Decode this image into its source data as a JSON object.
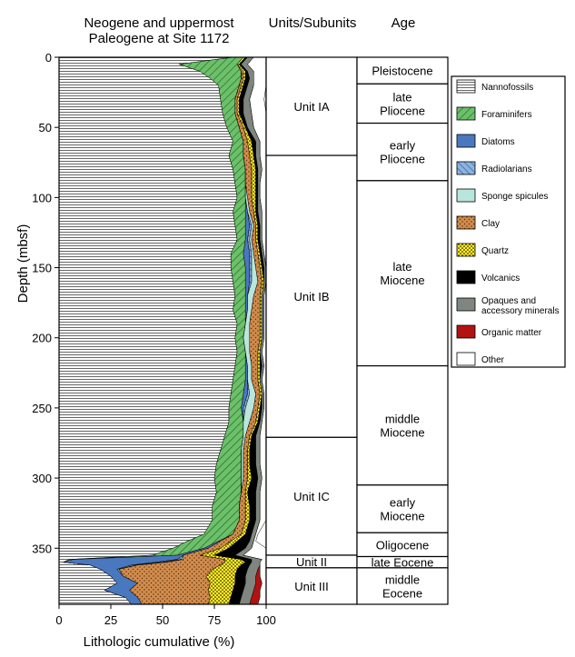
{
  "chart_data": {
    "type": "area",
    "title": [
      "Neogene and uppermost",
      "Paleogene at Site 1172"
    ],
    "xlabel": "Lithologic cumulative (%)",
    "ylabel": "Depth (mbsf)",
    "xlim": [
      0,
      100
    ],
    "ylim": [
      0,
      390
    ],
    "y_inverted": true,
    "x_ticks": [
      "0",
      "25",
      "50",
      "75",
      "100"
    ],
    "y_ticks": [
      "0",
      "50",
      "100",
      "150",
      "200",
      "250",
      "300",
      "350"
    ],
    "legend_position": "right",
    "series": [
      {
        "name": "Nannofossils",
        "key": "nanno",
        "color": "#ffffff",
        "pattern": "hlines",
        "depth": [
          0,
          5,
          10,
          15,
          20,
          30,
          40,
          50,
          60,
          70,
          80,
          90,
          100,
          110,
          120,
          130,
          140,
          150,
          160,
          170,
          180,
          190,
          200,
          210,
          220,
          230,
          240,
          250,
          260,
          270,
          280,
          290,
          300,
          310,
          320,
          330,
          340,
          345,
          350,
          355,
          358,
          360,
          362,
          365,
          370,
          375,
          380,
          385,
          390
        ],
        "values": [
          84,
          58,
          68,
          73,
          77,
          78,
          79,
          81,
          84,
          82,
          84,
          85,
          86,
          84,
          85,
          86,
          83,
          83,
          84,
          85,
          84,
          86,
          85,
          86,
          85,
          84,
          83,
          82,
          82,
          80,
          78,
          76,
          75,
          76,
          74,
          74,
          70,
          62,
          55,
          45,
          5,
          2,
          15,
          20,
          25,
          28,
          22,
          32,
          35
        ]
      },
      {
        "name": "Foraminifers",
        "key": "foram",
        "color": "#6cc06a",
        "pattern": "diag",
        "values": [
          5,
          28,
          20,
          15,
          10,
          7,
          6,
          6,
          5,
          7,
          6,
          5,
          4,
          6,
          5,
          4,
          6,
          7,
          6,
          5,
          6,
          4,
          4,
          4,
          5,
          6,
          6,
          6,
          7,
          9,
          10,
          12,
          13,
          12,
          13,
          13,
          14,
          15,
          15,
          12,
          2,
          0,
          0,
          0,
          0,
          0,
          0,
          0,
          0
        ]
      },
      {
        "name": "Diatoms",
        "key": "diatom",
        "color": "#4a78be",
        "pattern": "solid",
        "values": [
          0,
          0,
          0,
          0,
          0,
          0,
          0,
          0,
          0,
          0,
          0,
          0,
          0,
          1,
          2,
          1,
          3,
          2,
          2,
          1,
          1,
          0,
          0,
          0,
          1,
          1,
          2,
          1,
          0,
          0,
          0,
          0,
          0,
          0,
          0,
          0,
          0,
          1,
          2,
          3,
          50,
          45,
          20,
          8,
          6,
          10,
          12,
          6,
          5
        ]
      },
      {
        "name": "Radiolarians",
        "key": "radio",
        "color": "#8bb3e0",
        "pattern": "diag",
        "values": [
          0,
          0,
          0,
          0,
          0,
          0,
          0,
          0,
          0,
          0,
          0,
          0,
          0,
          0,
          1,
          1,
          1,
          1,
          1,
          0,
          0,
          0,
          0,
          0,
          0,
          0,
          1,
          1,
          0,
          0,
          0,
          0,
          0,
          0,
          0,
          0,
          0,
          0,
          0,
          0,
          2,
          3,
          2,
          1,
          0,
          0,
          0,
          0,
          0
        ]
      },
      {
        "name": "Sponge spicules",
        "key": "sponge",
        "color": "#b8e6dc",
        "pattern": "solid",
        "values": [
          0,
          0,
          0,
          0,
          0,
          0,
          0,
          0,
          0,
          0,
          0,
          0,
          1,
          1,
          1,
          1,
          1,
          2,
          3,
          3,
          2,
          2,
          3,
          2,
          2,
          2,
          3,
          4,
          3,
          1,
          1,
          1,
          1,
          0,
          0,
          0,
          0,
          0,
          0,
          0,
          1,
          2,
          1,
          0,
          0,
          0,
          0,
          0,
          0
        ]
      },
      {
        "name": "Clay",
        "key": "clay",
        "color": "#d08c4e",
        "pattern": "dots",
        "values": [
          0,
          0,
          1,
          1,
          1,
          1,
          1,
          2,
          2,
          3,
          3,
          3,
          2,
          2,
          1,
          2,
          2,
          2,
          2,
          3,
          4,
          5,
          5,
          4,
          3,
          3,
          2,
          2,
          3,
          2,
          2,
          2,
          2,
          2,
          3,
          3,
          4,
          5,
          6,
          8,
          20,
          28,
          40,
          45,
          40,
          35,
          38,
          35,
          32
        ]
      },
      {
        "name": "Quartz",
        "key": "quartz",
        "color": "#ffee22",
        "pattern": "dots",
        "values": [
          1,
          1,
          1,
          1,
          1,
          1,
          1,
          1,
          2,
          2,
          2,
          2,
          2,
          1,
          1,
          1,
          1,
          1,
          1,
          1,
          1,
          1,
          1,
          1,
          1,
          1,
          1,
          1,
          1,
          1,
          1,
          1,
          2,
          1,
          2,
          2,
          2,
          3,
          4,
          7,
          8,
          10,
          10,
          12,
          14,
          12,
          12,
          10,
          10
        ]
      },
      {
        "name": "Volcanics",
        "key": "volc",
        "color": "#000000",
        "pattern": "solid",
        "values": [
          1,
          1,
          1,
          2,
          2,
          2,
          2,
          1,
          2,
          1,
          1,
          1,
          1,
          1,
          1,
          1,
          1,
          1,
          0,
          0,
          0,
          0,
          0,
          0,
          1,
          0,
          0,
          1,
          1,
          2,
          3,
          3,
          3,
          4,
          3,
          3,
          3,
          6,
          8,
          10,
          5,
          3,
          4,
          5,
          5,
          5,
          5,
          5,
          5
        ]
      },
      {
        "name": "Opaques and accessory minerals",
        "key": "opaque",
        "color": "#7f8680",
        "pattern": "solid",
        "values": [
          3,
          3,
          3,
          2,
          3,
          3,
          4,
          3,
          2,
          2,
          2,
          1,
          1,
          2,
          1,
          1,
          1,
          1,
          1,
          1,
          1,
          1,
          1,
          1,
          1,
          1,
          1,
          1,
          1,
          2,
          2,
          2,
          2,
          2,
          2,
          2,
          2,
          2,
          3,
          4,
          5,
          4,
          5,
          5,
          5,
          5,
          5,
          5,
          5
        ]
      },
      {
        "name": "Organic matter",
        "key": "organic",
        "color": "#b31212",
        "pattern": "solid",
        "values": [
          0,
          0,
          0,
          0,
          0,
          0,
          0,
          0,
          0,
          0,
          0,
          0,
          0,
          0,
          0,
          0,
          0,
          0,
          0,
          0,
          0,
          0,
          0,
          0,
          0,
          0,
          0,
          0,
          0,
          0,
          0,
          0,
          0,
          0,
          0,
          0,
          0,
          0,
          0,
          0,
          0,
          0,
          0,
          1,
          2,
          3,
          3,
          4,
          4
        ]
      },
      {
        "name": "Other",
        "key": "other",
        "color": "#ffffff",
        "pattern": "solid",
        "values": [
          6,
          9,
          6,
          6,
          6,
          7,
          7,
          6,
          5,
          3,
          2,
          3,
          3,
          2,
          2,
          2,
          3,
          2,
          2,
          2,
          2,
          1,
          1,
          2,
          1,
          2,
          1,
          1,
          2,
          3,
          3,
          3,
          2,
          3,
          3,
          3,
          1,
          1,
          7,
          11,
          2,
          3,
          3,
          3,
          3,
          2,
          3,
          3,
          4
        ]
      }
    ]
  },
  "units_header": "Units/Subunits",
  "units": [
    {
      "label": "Unit IA",
      "top": 0,
      "bottom": 70
    },
    {
      "label": "Unit IB",
      "top": 70,
      "bottom": 271
    },
    {
      "label": "Unit IC",
      "top": 271,
      "bottom": 355
    },
    {
      "label": "Unit II",
      "top": 355,
      "bottom": 364
    },
    {
      "label": "Unit III",
      "top": 364,
      "bottom": 390
    }
  ],
  "age_header": "Age",
  "ages": [
    {
      "lines": [
        "Pleistocene"
      ],
      "top": 0,
      "bottom": 19
    },
    {
      "lines": [
        "late",
        "Pliocene"
      ],
      "top": 19,
      "bottom": 47
    },
    {
      "lines": [
        "early",
        "Pliocene"
      ],
      "top": 47,
      "bottom": 88
    },
    {
      "lines": [
        "late",
        "Miocene"
      ],
      "top": 88,
      "bottom": 220
    },
    {
      "lines": [
        "middle",
        "Miocene"
      ],
      "top": 220,
      "bottom": 305
    },
    {
      "lines": [
        "early",
        "Miocene"
      ],
      "top": 305,
      "bottom": 339
    },
    {
      "lines": [
        "Oligocene"
      ],
      "top": 339,
      "bottom": 356
    },
    {
      "lines": [
        "late Eocene"
      ],
      "top": 356,
      "bottom": 364
    },
    {
      "lines": [
        "middle",
        "Eocene"
      ],
      "top": 364,
      "bottom": 390
    }
  ]
}
